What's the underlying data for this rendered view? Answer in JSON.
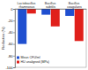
{
  "chart_data": {
    "type": "bar",
    "y_label": "Reduction (%)",
    "categories": [
      "Lactobacillus rhamnosus",
      "Bacillus subtilis",
      "Bacillus coagulans"
    ],
    "series": [
      {
        "name": "Mean CFU/ml",
        "color": "#1f4fd0",
        "values": [
          -60,
          -10,
          -12
        ]
      },
      {
        "name": "HU unaligned (MPa)",
        "color": "#e0201b",
        "values": [
          -8,
          -30,
          -55
        ]
      }
    ],
    "ylim": [
      -100,
      0
    ],
    "yticks": [
      0,
      -20,
      -40,
      -60,
      -80,
      -100
    ],
    "grid": false,
    "legend": "lower left"
  }
}
